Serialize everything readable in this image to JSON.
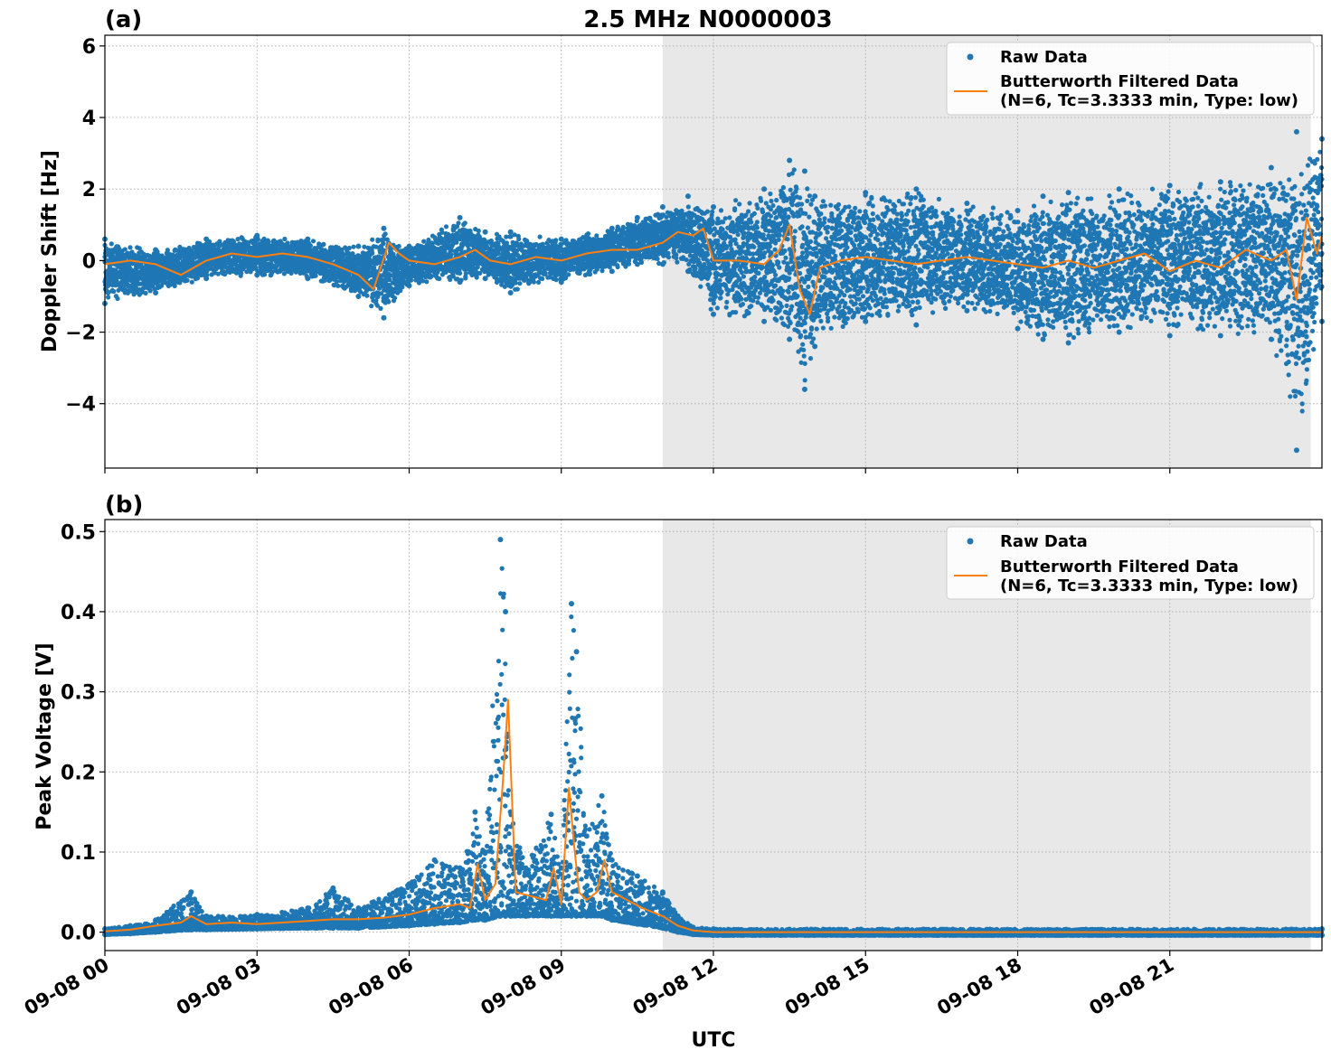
{
  "title": "2.5 MHz N0000003",
  "xlabel": "UTC",
  "colors": {
    "raw": "#1f77b4",
    "filtered": "#ff7f0e",
    "shade": "#e8e8e8",
    "grid": "#b0b0b0"
  },
  "legend": {
    "raw": "Raw Data",
    "filtered_line1": "Butterworth Filtered Data",
    "filtered_line2": "(N=6, Tc=3.3333 min, Type: low)"
  },
  "chart_data": [
    {
      "type": "scatter",
      "panel": "(a)",
      "ylabel": "Doppler Shift [Hz]",
      "xlim": [
        0,
        24
      ],
      "ylim": [
        -5.8,
        6.3
      ],
      "yticks": [
        -4,
        -2,
        0,
        2,
        4,
        6
      ],
      "ytick_labels": [
        "−4",
        "−2",
        "0",
        "2",
        "4",
        "6"
      ],
      "shade_range": [
        11.0,
        23.78
      ],
      "grid": true,
      "legend_position": "top-right",
      "series": [
        {
          "name": "Raw Data",
          "kind": "scatter-band",
          "x": [
            0,
            1,
            2,
            3,
            4,
            5,
            5.5,
            6,
            7,
            7.5,
            8,
            9,
            10,
            10.5,
            11,
            11.5,
            12,
            13,
            13.5,
            13.8,
            14,
            15,
            16,
            17,
            18,
            18.5,
            19,
            20,
            21,
            22,
            23,
            23.5,
            24
          ],
          "upper": [
            0.6,
            0.3,
            0.6,
            0.7,
            0.6,
            0.4,
            0.9,
            0.4,
            1.2,
            0.8,
            0.8,
            0.6,
            0.9,
            1.2,
            1.5,
            1.8,
            1.5,
            2.0,
            2.8,
            2.5,
            1.8,
            1.9,
            2.0,
            1.6,
            1.4,
            1.8,
            1.9,
            2.0,
            2.1,
            2.2,
            2.6,
            3.6,
            3.4
          ],
          "lower": [
            -1.2,
            -0.9,
            -0.5,
            -0.4,
            -0.5,
            -1.0,
            -1.6,
            -0.7,
            -0.6,
            -0.5,
            -0.9,
            -0.6,
            -0.3,
            -0.1,
            -0.1,
            -0.3,
            -1.5,
            -1.7,
            -2.2,
            -3.6,
            -2.4,
            -1.7,
            -1.8,
            -1.4,
            -1.9,
            -2.2,
            -2.3,
            -2.0,
            -2.1,
            -2.1,
            -2.2,
            -5.3,
            -1.7
          ]
        },
        {
          "name": "Butterworth Filtered Data",
          "kind": "line",
          "x": [
            0,
            0.5,
            1,
            1.5,
            2,
            2.5,
            3,
            3.5,
            4,
            4.5,
            5,
            5.3,
            5.6,
            5.8,
            6,
            6.5,
            7,
            7.3,
            7.6,
            8,
            8.5,
            9,
            9.5,
            10,
            10.5,
            11,
            11.3,
            11.6,
            11.8,
            12,
            12.5,
            13,
            13.3,
            13.5,
            13.7,
            13.9,
            14.1,
            14.5,
            15,
            15.5,
            16,
            16.5,
            17,
            17.5,
            18,
            18.5,
            19,
            19.5,
            20,
            20.5,
            21,
            21.5,
            22,
            22.5,
            23,
            23.3,
            23.5,
            23.7,
            23.9,
            24
          ],
          "y": [
            -0.1,
            0.0,
            -0.1,
            -0.4,
            0.0,
            0.2,
            0.1,
            0.2,
            0.1,
            -0.1,
            -0.4,
            -0.8,
            0.5,
            0.2,
            0.0,
            -0.1,
            0.1,
            0.3,
            0.0,
            -0.1,
            0.1,
            0.0,
            0.2,
            0.3,
            0.3,
            0.5,
            0.8,
            0.7,
            0.9,
            0.0,
            0.0,
            -0.1,
            0.3,
            1.0,
            -0.8,
            -1.5,
            -0.2,
            0.0,
            0.1,
            0.0,
            -0.1,
            0.0,
            0.1,
            0.0,
            -0.1,
            -0.2,
            0.0,
            -0.2,
            0.0,
            0.2,
            -0.3,
            0.0,
            -0.2,
            0.3,
            0.0,
            0.3,
            -1.1,
            1.2,
            0.2,
            0.7
          ]
        }
      ]
    },
    {
      "type": "scatter",
      "panel": "(b)",
      "ylabel": "Peak Voltage [V]",
      "xlim": [
        0,
        24
      ],
      "ylim": [
        -0.023,
        0.515
      ],
      "yticks": [
        0.0,
        0.1,
        0.2,
        0.3,
        0.4,
        0.5
      ],
      "ytick_labels": [
        "0.0",
        "0.1",
        "0.2",
        "0.3",
        "0.4",
        "0.5"
      ],
      "xticks": [
        0,
        3,
        6,
        9,
        12,
        15,
        18,
        21
      ],
      "xtick_labels": [
        "09-08 00",
        "09-08 03",
        "09-08 06",
        "09-08 09",
        "09-08 12",
        "09-08 15",
        "09-08 18",
        "09-08 21"
      ],
      "shade_range": [
        11.0,
        23.78
      ],
      "grid": true,
      "legend_position": "top-right",
      "series": [
        {
          "name": "Raw Data",
          "kind": "scatter-band",
          "x": [
            0,
            0.5,
            1,
            1.7,
            2,
            3,
            4,
            4.5,
            5,
            6,
            6.5,
            7,
            7.3,
            7.5,
            7.8,
            7.9,
            8.0,
            8.3,
            8.8,
            9.0,
            9.2,
            9.3,
            9.5,
            9.8,
            10.0,
            10.5,
            11.0,
            11.3,
            11.6,
            12,
            24
          ],
          "upper": [
            0.004,
            0.008,
            0.015,
            0.05,
            0.02,
            0.022,
            0.03,
            0.055,
            0.03,
            0.06,
            0.09,
            0.08,
            0.15,
            0.1,
            0.49,
            0.4,
            0.15,
            0.08,
            0.147,
            0.08,
            0.41,
            0.35,
            0.12,
            0.17,
            0.09,
            0.07,
            0.05,
            0.02,
            0.006,
            0.004,
            0.004
          ],
          "lower": [
            -0.003,
            -0.002,
            0.0,
            0.003,
            0.003,
            0.004,
            0.005,
            0.005,
            0.005,
            0.008,
            0.01,
            0.012,
            0.015,
            0.015,
            0.02,
            0.02,
            0.02,
            0.02,
            0.02,
            0.02,
            0.02,
            0.02,
            0.02,
            0.02,
            0.015,
            0.01,
            0.005,
            0.0,
            -0.003,
            -0.004,
            -0.004
          ]
        },
        {
          "name": "Butterworth Filtered Data",
          "kind": "line",
          "x": [
            0,
            0.5,
            1,
            1.5,
            1.7,
            2,
            2.5,
            3,
            3.5,
            4,
            4.5,
            5,
            5.5,
            6,
            6.5,
            7,
            7.2,
            7.35,
            7.5,
            7.7,
            7.85,
            7.95,
            8.1,
            8.4,
            8.7,
            8.85,
            9.0,
            9.15,
            9.25,
            9.35,
            9.5,
            9.7,
            9.85,
            10.0,
            10.3,
            10.6,
            11.0,
            11.3,
            11.6,
            12,
            24
          ],
          "y": [
            0.001,
            0.003,
            0.008,
            0.012,
            0.02,
            0.01,
            0.012,
            0.01,
            0.012,
            0.014,
            0.016,
            0.016,
            0.018,
            0.022,
            0.03,
            0.035,
            0.03,
            0.085,
            0.04,
            0.06,
            0.19,
            0.29,
            0.05,
            0.045,
            0.04,
            0.08,
            0.035,
            0.18,
            0.11,
            0.05,
            0.04,
            0.05,
            0.09,
            0.05,
            0.04,
            0.03,
            0.02,
            0.008,
            0.002,
            0.0,
            0.0
          ]
        }
      ]
    }
  ]
}
